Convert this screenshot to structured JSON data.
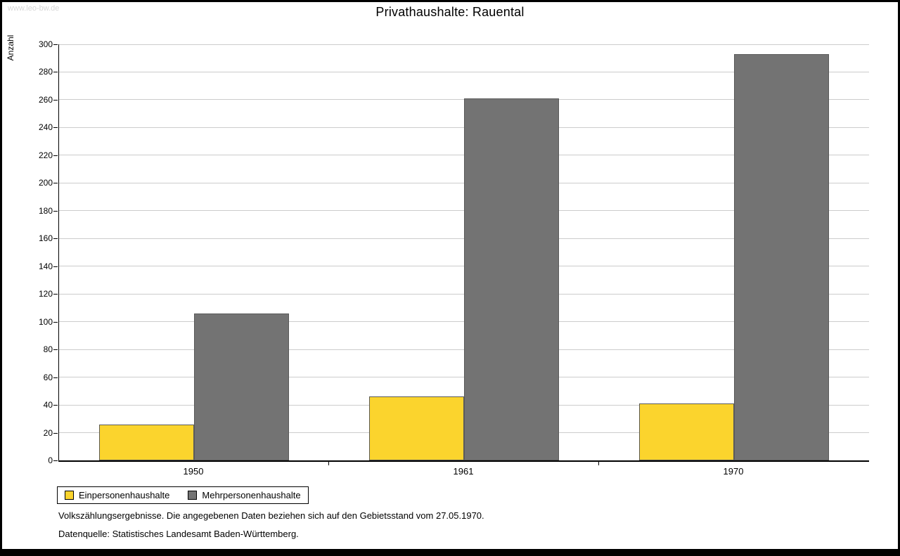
{
  "page": {
    "watermark": "www.leo-bw.de",
    "footnote1": "Volkszählungsergebnisse. Die angegebenen Daten beziehen sich auf den Gebietsstand vom 27.05.1970.",
    "footnote2": "Datenquelle: Statistisches Landesamt Baden-Württemberg."
  },
  "chart_data": {
    "type": "bar",
    "title": "Privathaushalte: Rauental",
    "xlabel": "",
    "ylabel": "Anzahl",
    "categories": [
      "1950",
      "1961",
      "1970"
    ],
    "series": [
      {
        "name": "Einpersonenhaushalte",
        "color": "#FBD42D",
        "values": [
          26,
          46,
          41
        ]
      },
      {
        "name": "Mehrpersonenhaushalte",
        "color": "#737373",
        "values": [
          106,
          261,
          293
        ]
      }
    ],
    "ylim": [
      0,
      300
    ],
    "ytick_step": 20,
    "grid": true,
    "legend_position": "bottom-left"
  }
}
